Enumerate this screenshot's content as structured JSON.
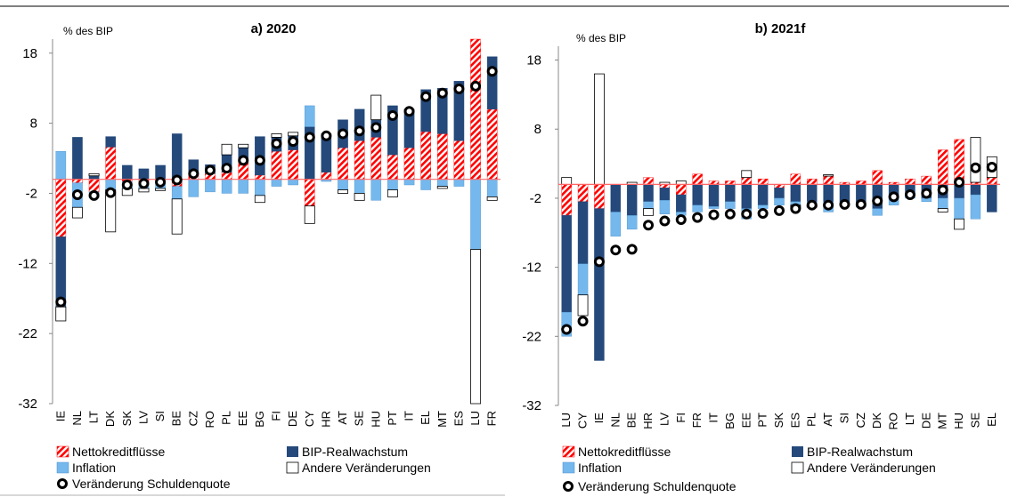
{
  "colors": {
    "netto": "#ff0000",
    "bip": "#24497a",
    "inflation": "#74b8ee",
    "andere": "#ffffff",
    "marker": "#000000"
  },
  "legend": {
    "netto": "Nettokreditflüsse",
    "bip": "BIP-Realwachstum",
    "inflation": "Inflation",
    "andere": "Andere Veränderungen",
    "debt": "Veränderung Schuldenquote"
  },
  "chart_data": [
    {
      "type": "bar",
      "stacked": true,
      "title": "a) 2020",
      "unit_label": "% des BIP",
      "ylim": [
        -32,
        20
      ],
      "yticks": [
        18,
        8,
        -2,
        -12,
        -22,
        -32
      ],
      "categories": [
        "IE",
        "NL",
        "LT",
        "DK",
        "SK",
        "LV",
        "SI",
        "BE",
        "CZ",
        "RO",
        "PL",
        "EE",
        "BG",
        "FI",
        "DE",
        "CY",
        "HR",
        "AT",
        "SE",
        "HU",
        "PT",
        "IT",
        "EL",
        "MT",
        "ES",
        "LU",
        "FR"
      ],
      "series": [
        {
          "name": "Nettokreditflüsse",
          "key": "netto",
          "values": [
            -8.2,
            -0.5,
            -1.8,
            4.6,
            -0.3,
            -0.5,
            -0.3,
            -1.0,
            0.8,
            0.8,
            1.0,
            2.5,
            0.6,
            4.0,
            4.2,
            -3.8,
            1.0,
            4.5,
            5.5,
            6.0,
            3.5,
            4.5,
            6.8,
            6.5,
            5.5,
            20.0,
            10.0
          ]
        },
        {
          "name": "BIP-Realwachstum",
          "key": "bip",
          "values": [
            -10.0,
            6.0,
            0.5,
            1.5,
            2.0,
            1.5,
            2.0,
            6.5,
            2.0,
            1.3,
            2.5,
            2.0,
            5.5,
            2.0,
            2.0,
            7.5,
            5.5,
            4.0,
            4.5,
            2.5,
            7.0,
            5.5,
            6.0,
            6.5,
            8.5,
            0.0,
            7.5
          ]
        },
        {
          "name": "Inflation",
          "key": "inflation",
          "values": [
            4.0,
            -3.5,
            -0.8,
            -1.5,
            -1.0,
            -0.8,
            -1.0,
            -1.8,
            -2.5,
            -1.8,
            -2.0,
            -2.0,
            -2.3,
            -1.0,
            -0.8,
            3.0,
            -0.3,
            -1.5,
            -2.0,
            -3.0,
            -1.5,
            -0.8,
            -1.5,
            -1.0,
            -1.0,
            -10.0,
            -2.5
          ]
        },
        {
          "name": "Andere Veränderungen",
          "key": "andere",
          "values": [
            -2.0,
            -1.5,
            0.3,
            -6.0,
            -1.0,
            -0.5,
            -0.3,
            -5.0,
            0.0,
            0.0,
            1.5,
            0.5,
            -1.0,
            0.5,
            0.5,
            -2.5,
            0.0,
            -0.5,
            -1.0,
            3.5,
            -1.0,
            0.0,
            0.0,
            -0.3,
            0.0,
            -22.0,
            -0.5
          ]
        }
      ],
      "debt_change": [
        -17.5,
        -2.2,
        -2.3,
        -1.9,
        -0.8,
        -0.6,
        -0.4,
        -0.1,
        0.8,
        1.3,
        1.6,
        2.7,
        2.7,
        5.1,
        5.4,
        6.0,
        6.2,
        6.5,
        6.9,
        7.4,
        9.1,
        9.7,
        11.8,
        12.3,
        12.9,
        13.3,
        15.4
      ]
    },
    {
      "type": "bar",
      "stacked": true,
      "title": "b) 2021f",
      "unit_label": "% des BIP",
      "ylim": [
        -32,
        20
      ],
      "yticks": [
        18,
        8,
        -2,
        -12,
        -22,
        -32
      ],
      "categories": [
        "LU",
        "CY",
        "IE",
        "NL",
        "BE",
        "HR",
        "LV",
        "FI",
        "FR",
        "IT",
        "BG",
        "EE",
        "PT",
        "SK",
        "ES",
        "PL",
        "AT",
        "SI",
        "CZ",
        "DK",
        "RO",
        "LT",
        "DE",
        "MT",
        "HU",
        "SE",
        "EL"
      ],
      "series": [
        {
          "name": "Nettokreditflüsse",
          "key": "netto",
          "values": [
            -4.5,
            -2.5,
            -3.5,
            0.0,
            0.0,
            1.0,
            -0.5,
            -1.5,
            1.5,
            0.5,
            0.5,
            1.0,
            0.8,
            -0.5,
            1.5,
            0.8,
            1.2,
            0.3,
            0.5,
            2.0,
            0.3,
            0.8,
            1.2,
            5.0,
            6.5,
            0.3,
            1.0
          ]
        },
        {
          "name": "BIP-Realwachstum",
          "key": "bip",
          "values": [
            -14.0,
            -9.0,
            -22.0,
            -4.0,
            -4.5,
            -2.5,
            -1.8,
            -2.5,
            -3.0,
            -3.2,
            -2.5,
            -3.5,
            -3.0,
            -1.5,
            -2.5,
            -2.5,
            -2.5,
            -2.5,
            -3.0,
            -3.5,
            -1.5,
            -1.5,
            -2.0,
            -2.0,
            -2.0,
            -1.5,
            -4.0
          ]
        },
        {
          "name": "Inflation",
          "key": "inflation",
          "values": [
            -3.5,
            -4.5,
            0.0,
            -3.5,
            -2.0,
            -1.0,
            -2.0,
            -0.5,
            -1.0,
            -0.3,
            -1.0,
            -1.5,
            -0.5,
            -1.0,
            -0.5,
            -0.5,
            -1.5,
            -0.3,
            -0.3,
            -1.0,
            -1.5,
            -0.5,
            -0.5,
            -1.5,
            -3.0,
            -3.5,
            0.0
          ]
        },
        {
          "name": "Andere Veränderungen",
          "key": "andere",
          "values": [
            1.0,
            -3.0,
            16.0,
            0.0,
            0.3,
            -1.0,
            0.3,
            0.5,
            0.0,
            0.0,
            0.0,
            1.0,
            0.0,
            0.0,
            -0.5,
            -0.3,
            0.2,
            0.0,
            0.0,
            0.0,
            0.0,
            0.0,
            0.0,
            -0.5,
            -1.5,
            6.5,
            3.0
          ]
        }
      ],
      "debt_change": [
        -21.0,
        -19.8,
        -11.2,
        -9.5,
        -9.4,
        -5.9,
        -5.3,
        -5.1,
        -4.8,
        -4.4,
        -4.3,
        -4.3,
        -4.2,
        -3.8,
        -3.5,
        -3.0,
        -3.0,
        -2.9,
        -2.9,
        -2.4,
        -1.8,
        -1.5,
        -1.3,
        -0.8,
        0.3,
        2.4,
        2.5
      ]
    }
  ]
}
